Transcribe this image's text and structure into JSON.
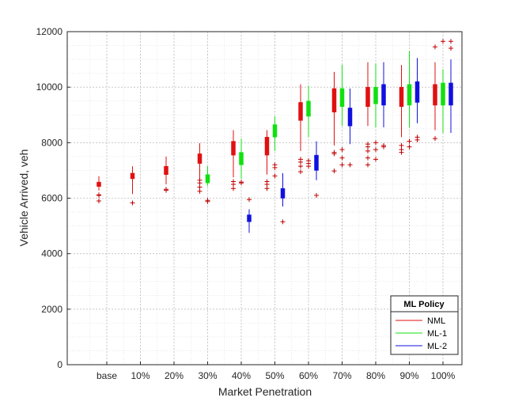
{
  "chart_data": {
    "type": "box",
    "xlabel": "Market Penetration",
    "ylabel": "Vehicle Arrived, veh",
    "ylim": [
      0,
      12000
    ],
    "yticks": [
      0,
      2000,
      4000,
      6000,
      8000,
      10000,
      12000
    ],
    "grid": true,
    "categories": [
      "base",
      "10%",
      "20%",
      "30%",
      "40%",
      "50%",
      "60%",
      "70%",
      "80%",
      "90%",
      "100%"
    ],
    "legend": {
      "title": "ML Policy",
      "position": "bottom-right"
    },
    "series": [
      {
        "name": "NML",
        "color": "#e01010",
        "boxes": [
          {
            "category": "base",
            "whisker_low": 6280,
            "q1": 6420,
            "median": 6500,
            "q3": 6580,
            "whisker_high": 6790,
            "outliers": [
              5900,
              6100,
              6120
            ]
          },
          {
            "category": "10%",
            "whisker_low": 6150,
            "q1": 6700,
            "median": 6800,
            "q3": 6900,
            "whisker_high": 7150,
            "outliers": [
              5830
            ]
          },
          {
            "category": "20%",
            "whisker_low": 6500,
            "q1": 6850,
            "median": 7000,
            "q3": 7150,
            "whisker_high": 7500,
            "outliers": [
              6280,
              6320
            ]
          },
          {
            "category": "30%",
            "whisker_low": 6700,
            "q1": 7250,
            "median": 7450,
            "q3": 7600,
            "whisker_high": 7980,
            "outliers": [
              6250,
              6400,
              6550,
              6650
            ]
          },
          {
            "category": "40%",
            "whisker_low": 6750,
            "q1": 7550,
            "median": 7750,
            "q3": 8050,
            "whisker_high": 8450,
            "outliers": [
              6350,
              6500,
              6600
            ]
          },
          {
            "category": "50%",
            "whisker_low": 6850,
            "q1": 7550,
            "median": 7800,
            "q3": 8200,
            "whisker_high": 8450,
            "outliers": [
              6350,
              6500,
              6600
            ]
          },
          {
            "category": "60%",
            "whisker_low": 7700,
            "q1": 8800,
            "median": 9200,
            "q3": 9450,
            "whisker_high": 10100,
            "outliers": [
              6950,
              7150,
              7300,
              7400
            ]
          },
          {
            "category": "70%",
            "whisker_low": 7900,
            "q1": 9100,
            "median": 9550,
            "q3": 9950,
            "whisker_high": 10550,
            "outliers": [
              6980,
              7600,
              7650
            ]
          },
          {
            "category": "80%",
            "whisker_low": 8600,
            "q1": 9300,
            "median": 9650,
            "q3": 10000,
            "whisker_high": 10900,
            "outliers": [
              7200,
              7450,
              7700,
              7850,
              7950
            ]
          },
          {
            "category": "90%",
            "whisker_low": 8200,
            "q1": 9300,
            "median": 9650,
            "q3": 10000,
            "whisker_high": 10800,
            "outliers": [
              7650,
              7750,
              7900
            ]
          },
          {
            "category": "100%",
            "whisker_low": 8450,
            "q1": 9350,
            "median": 9700,
            "q3": 10100,
            "whisker_high": 10900,
            "outliers": [
              8150,
              11450
            ]
          }
        ]
      },
      {
        "name": "ML-1",
        "color": "#10e010",
        "boxes": [
          {
            "category": "30%",
            "whisker_low": 6450,
            "q1": 6550,
            "median": 6700,
            "q3": 6850,
            "whisker_high": 7150,
            "outliers": [
              5880,
              5920
            ]
          },
          {
            "category": "40%",
            "whisker_low": 6700,
            "q1": 7200,
            "median": 7450,
            "q3": 7650,
            "whisker_high": 8150,
            "outliers": [
              6550,
              6580
            ]
          },
          {
            "category": "50%",
            "whisker_low": 7700,
            "q1": 8200,
            "median": 8450,
            "q3": 8650,
            "whisker_high": 8950,
            "outliers": [
              6800,
              7100,
              7200
            ]
          },
          {
            "category": "60%",
            "whisker_low": 8200,
            "q1": 8950,
            "median": 9250,
            "q3": 9500,
            "whisker_high": 10050,
            "outliers": [
              7150,
              7250,
              7350
            ]
          },
          {
            "category": "70%",
            "whisker_low": 8600,
            "q1": 9300,
            "median": 9600,
            "q3": 9950,
            "whisker_high": 10800,
            "outliers": [
              7200,
              7450,
              7750
            ]
          },
          {
            "category": "80%",
            "whisker_low": 8550,
            "q1": 9400,
            "median": 9700,
            "q3": 10000,
            "whisker_high": 10850,
            "outliers": [
              7400,
              7750,
              8000
            ]
          },
          {
            "category": "90%",
            "whisker_low": 8550,
            "q1": 9350,
            "median": 9750,
            "q3": 10100,
            "whisker_high": 11300,
            "outliers": [
              7850,
              8050
            ]
          },
          {
            "category": "100%",
            "whisker_low": 8350,
            "q1": 9350,
            "median": 9800,
            "q3": 10150,
            "whisker_high": 10650,
            "outliers": [
              11650
            ]
          }
        ]
      },
      {
        "name": "ML-2",
        "color": "#1010e0",
        "boxes": [
          {
            "category": "40%",
            "whisker_low": 4750,
            "q1": 5150,
            "median": 5250,
            "q3": 5400,
            "whisker_high": 5600,
            "outliers": [
              5950
            ]
          },
          {
            "category": "50%",
            "whisker_low": 5700,
            "q1": 6000,
            "median": 6150,
            "q3": 6350,
            "whisker_high": 6900,
            "outliers": [
              5150
            ]
          },
          {
            "category": "60%",
            "whisker_low": 6650,
            "q1": 7000,
            "median": 7250,
            "q3": 7550,
            "whisker_high": 8050,
            "outliers": [
              6100
            ]
          },
          {
            "category": "70%",
            "whisker_low": 7950,
            "q1": 8600,
            "median": 8900,
            "q3": 9250,
            "whisker_high": 9950,
            "outliers": [
              7200
            ]
          },
          {
            "category": "80%",
            "whisker_low": 8550,
            "q1": 9350,
            "median": 9700,
            "q3": 10100,
            "whisker_high": 10900,
            "outliers": [
              7850,
              7900
            ]
          },
          {
            "category": "90%",
            "whisker_low": 8700,
            "q1": 9450,
            "median": 9800,
            "q3": 10200,
            "whisker_high": 11050,
            "outliers": [
              8100,
              8200
            ]
          },
          {
            "category": "100%",
            "whisker_low": 8350,
            "q1": 9350,
            "median": 9800,
            "q3": 10150,
            "whisker_high": 11000,
            "outliers": [
              11400,
              11650
            ]
          }
        ]
      }
    ]
  }
}
